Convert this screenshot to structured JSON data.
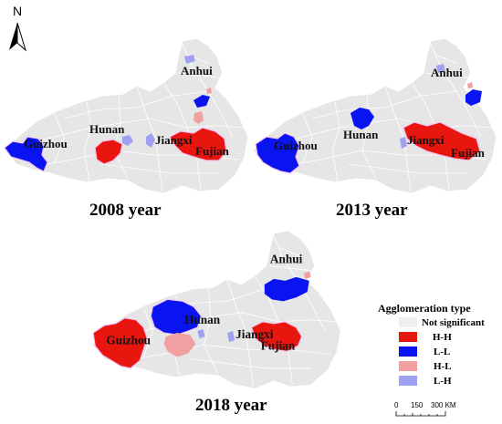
{
  "north_label": "N",
  "colors": {
    "not_significant": "#e6e6e6",
    "hh": "#e8160f",
    "ll": "#0a14f0",
    "hl": "#f0a0a0",
    "lh": "#a0a0f0",
    "halo": "#f2c4f2",
    "boundary": "#ffffff"
  },
  "panels": [
    {
      "title": "2008 year",
      "labels": {
        "guizhou": "Guizhou",
        "hunan": "Hunan",
        "jiangxi": "Jiangxi",
        "fujian": "Fujian",
        "anhui": "Anhui"
      }
    },
    {
      "title": "2013 year",
      "labels": {
        "guizhou": "Guizhou",
        "hunan": "Hunan",
        "jiangxi": "Jiangxi",
        "fujian": "Fujian",
        "anhui": "Anhui"
      }
    },
    {
      "title": "2018 year",
      "labels": {
        "guizhou": "Guizhou",
        "hunan": "Hunan",
        "jiangxi": "Jiangxi",
        "fujian": "Fujian",
        "anhui": "Anhui"
      }
    }
  ],
  "legend": {
    "title": "Agglomeration type",
    "items": [
      {
        "label": "Not significant",
        "color": "#efefef"
      },
      {
        "label": "H-H",
        "color": "#e8160f"
      },
      {
        "label": "L-L",
        "color": "#0a14f0"
      },
      {
        "label": "H-L",
        "color": "#f0a0a0"
      },
      {
        "label": "L-H",
        "color": "#a0a0f0"
      }
    ]
  },
  "scale_bar": {
    "ticks": [
      "0",
      "150",
      "300 KM"
    ]
  }
}
